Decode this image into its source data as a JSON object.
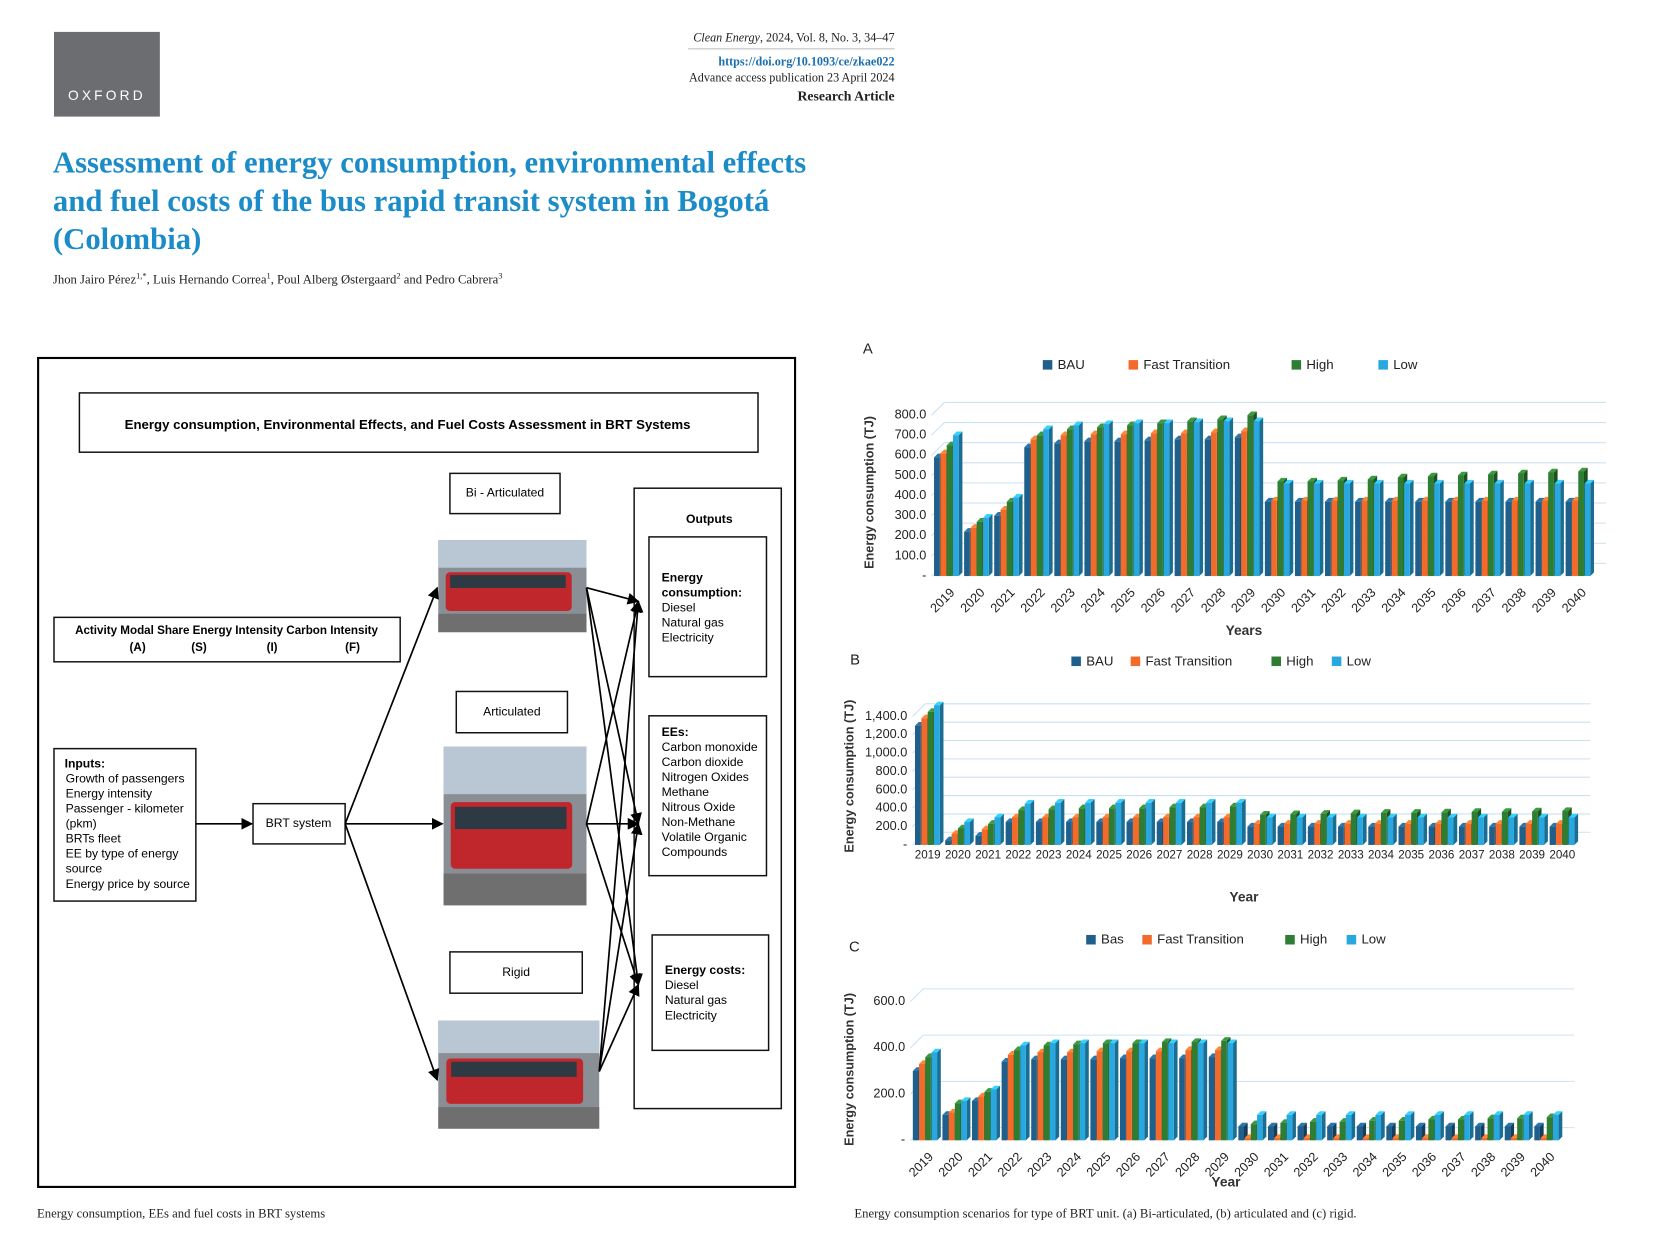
{
  "header": {
    "logo": "OXFORD",
    "journal": "Clean Energy",
    "citation": ", 2024, Vol. 8, No. 3, 34–47",
    "doi": "https://doi.org/10.1093/ce/zkae022",
    "published": "Advance access publication 23 April 2024",
    "article_type": "Research Article"
  },
  "title": "Assessment of energy consumption, environmental effects and fuel costs of the bus rapid transit system in Bogotá (Colombia)",
  "authors": [
    {
      "name": "Jhon Jairo Pérez",
      "affiliation": "1,*",
      "separator": ", "
    },
    {
      "name": "Luis Hernando Correa",
      "affiliation": "1",
      "separator": ", "
    },
    {
      "name": "Poul Alberg Østergaard",
      "affiliation": "2",
      "separator": " and "
    },
    {
      "name": "Pedro Cabrera",
      "affiliation": "3"
    }
  ],
  "figure1": {
    "heading": "Energy consumption, Environmental Effects, and Fuel Costs Assessment in BRT Systems",
    "activity": {
      "label": "Activity Modal Share Energy Intensity Carbon Intensity",
      "letters": [
        "(A)",
        "(S)",
        "(I)",
        "(F)"
      ]
    },
    "inputs": {
      "heading": "Inputs:",
      "items": [
        "Growth of passengers",
        "Energy intensity",
        "Passenger - kilometer",
        "(pkm)",
        "BRTs fleet",
        "EE by type of energy",
        "source",
        "Energy price by source"
      ]
    },
    "center": "BRT system",
    "units": [
      "Bi - Articulated",
      "Articulated",
      "Rigid"
    ],
    "outputs": {
      "heading": "Outputs",
      "groups": [
        {
          "heading_lines": [
            "Energy",
            "consumption:"
          ],
          "items": [
            "Diesel",
            "Natural gas",
            "Electricity"
          ]
        },
        {
          "heading_lines": [
            "EEs:"
          ],
          "items": [
            "Carbon monoxide",
            "Carbon dioxide",
            "Nitrogen Oxides",
            "Methane",
            "Nitrous Oxide",
            "Non-Methane",
            "Volatile Organic",
            "Compounds"
          ]
        },
        {
          "heading_lines": [
            "Energy costs:"
          ],
          "items": [
            "Diesel",
            "Natural gas",
            "Electricity"
          ]
        }
      ]
    },
    "caption": "Energy consumption, EEs and fuel costs in BRT systems"
  },
  "chart_data": [
    {
      "type": "bar",
      "panel": "A",
      "ylabel": "Energy consumption (TJ)",
      "xlabel": "Years",
      "categories": [
        "2019",
        "2020",
        "2021",
        "2022",
        "2023",
        "2024",
        "2025",
        "2026",
        "2027",
        "2028",
        "2029",
        "2030",
        "2031",
        "2032",
        "2033",
        "2034",
        "2035",
        "2036",
        "2037",
        "2038",
        "2039",
        "2040"
      ],
      "series": [
        {
          "name": "BAU",
          "color": "#1f5f8b",
          "values": [
            590,
            220,
            300,
            640,
            660,
            670,
            670,
            675,
            680,
            680,
            690,
            370,
            370,
            370,
            370,
            370,
            370,
            370,
            370,
            370,
            370,
            370
          ]
        },
        {
          "name": "Fast Transition",
          "color": "#f26b2a",
          "values": [
            610,
            240,
            330,
            680,
            700,
            705,
            705,
            710,
            710,
            715,
            720,
            375,
            375,
            375,
            375,
            375,
            375,
            375,
            375,
            375,
            375,
            375
          ]
        },
        {
          "name": "High",
          "color": "#2e7d32",
          "values": [
            650,
            270,
            370,
            700,
            730,
            740,
            750,
            760,
            770,
            780,
            800,
            470,
            470,
            475,
            480,
            490,
            495,
            500,
            505,
            510,
            515,
            520
          ]
        },
        {
          "name": "Low",
          "color": "#29a8e0",
          "values": [
            700,
            290,
            390,
            730,
            750,
            755,
            760,
            760,
            765,
            770,
            770,
            460,
            460,
            460,
            460,
            460,
            460,
            460,
            460,
            460,
            460,
            460
          ]
        }
      ],
      "ylim": [
        0,
        850
      ],
      "yticks": [
        {
          "value": 0,
          "label": "-"
        },
        {
          "value": 100,
          "label": "100.0"
        },
        {
          "value": 200,
          "label": "200.0"
        },
        {
          "value": 300,
          "label": "300.0"
        },
        {
          "value": 400,
          "label": "400.0"
        },
        {
          "value": 500,
          "label": "500.0"
        },
        {
          "value": 600,
          "label": "600.0"
        },
        {
          "value": 700,
          "label": "700.0"
        },
        {
          "value": 800,
          "label": "800.0"
        }
      ],
      "grid": true
    },
    {
      "type": "bar",
      "panel": "B",
      "ylabel": "Energy consumption (TJ)",
      "xlabel": "Year",
      "categories": [
        "2019",
        "2020",
        "2021",
        "2022",
        "2023",
        "2024",
        "2025",
        "2026",
        "2027",
        "2028",
        "2029",
        "2030",
        "2031",
        "2032",
        "2033",
        "2034",
        "2035",
        "2036",
        "2037",
        "2038",
        "2039",
        "2040"
      ],
      "series": [
        {
          "name": "BAU",
          "color": "#1f5f8b",
          "values": [
            1300,
            50,
            100,
            250,
            250,
            250,
            250,
            250,
            250,
            250,
            250,
            200,
            200,
            200,
            200,
            200,
            200,
            200,
            200,
            200,
            200,
            200
          ]
        },
        {
          "name": "Fast Transition",
          "color": "#f26b2a",
          "values": [
            1380,
            120,
            170,
            300,
            300,
            300,
            300,
            300,
            300,
            300,
            300,
            230,
            230,
            230,
            230,
            230,
            230,
            230,
            230,
            230,
            230,
            230
          ]
        },
        {
          "name": "High",
          "color": "#2e7d32",
          "values": [
            1450,
            180,
            230,
            380,
            390,
            400,
            400,
            400,
            410,
            410,
            420,
            330,
            335,
            340,
            345,
            350,
            350,
            355,
            360,
            360,
            365,
            370
          ]
        },
        {
          "name": "Low",
          "color": "#29a8e0",
          "values": [
            1520,
            250,
            300,
            450,
            460,
            460,
            460,
            460,
            460,
            460,
            460,
            300,
            300,
            300,
            300,
            300,
            300,
            300,
            300,
            300,
            300,
            300
          ]
        }
      ],
      "ylim": [
        0,
        1500
      ],
      "yticks": [
        {
          "value": 0,
          "label": "-"
        },
        {
          "value": 200,
          "label": "200.0"
        },
        {
          "value": 400,
          "label": "400.0"
        },
        {
          "value": 600,
          "label": "600.0"
        },
        {
          "value": 800,
          "label": "800.0"
        },
        {
          "value": 1000,
          "label": "1,000.0"
        },
        {
          "value": 1200,
          "label": "1,200.0"
        },
        {
          "value": 1400,
          "label": "1,400.0"
        }
      ],
      "grid": true
    },
    {
      "type": "bar",
      "panel": "C",
      "ylabel": "Energy consumption (TJ)",
      "xlabel": "Year",
      "categories": [
        "2019",
        "2020",
        "2021",
        "2022",
        "2023",
        "2024",
        "2025",
        "2026",
        "2027",
        "2028",
        "2029",
        "2030",
        "2031",
        "2032",
        "2033",
        "2034",
        "2035",
        "2036",
        "2037",
        "2038",
        "2039",
        "2040"
      ],
      "series": [
        {
          "name": "Bas",
          "color": "#1f5f8b",
          "values": [
            300,
            110,
            170,
            340,
            350,
            350,
            350,
            355,
            355,
            355,
            360,
            60,
            60,
            60,
            60,
            60,
            60,
            60,
            60,
            60,
            60,
            60
          ]
        },
        {
          "name": "Fast Transition",
          "color": "#f26b2a",
          "values": [
            330,
            120,
            190,
            370,
            380,
            380,
            385,
            385,
            385,
            390,
            390,
            10,
            10,
            10,
            10,
            10,
            10,
            10,
            10,
            10,
            10,
            10
          ]
        },
        {
          "name": "High",
          "color": "#2e7d32",
          "values": [
            360,
            160,
            210,
            390,
            410,
            415,
            420,
            420,
            425,
            425,
            430,
            70,
            75,
            80,
            80,
            85,
            85,
            90,
            90,
            95,
            95,
            100
          ]
        },
        {
          "name": "Low",
          "color": "#29a8e0",
          "values": [
            380,
            170,
            220,
            410,
            420,
            420,
            420,
            420,
            420,
            420,
            420,
            110,
            110,
            110,
            110,
            110,
            110,
            110,
            110,
            110,
            110,
            110
          ]
        }
      ],
      "ylim": [
        0,
        650
      ],
      "yticks": [
        {
          "value": 0,
          "label": "-"
        },
        {
          "value": 200,
          "label": "200.0"
        },
        {
          "value": 400,
          "label": "400.0"
        },
        {
          "value": 600,
          "label": "600.0"
        }
      ],
      "grid": true
    }
  ],
  "figure2_caption": "Energy consumption scenarios for type of BRT unit. (a) Bi-articulated, (b) articulated and (c) rigid."
}
